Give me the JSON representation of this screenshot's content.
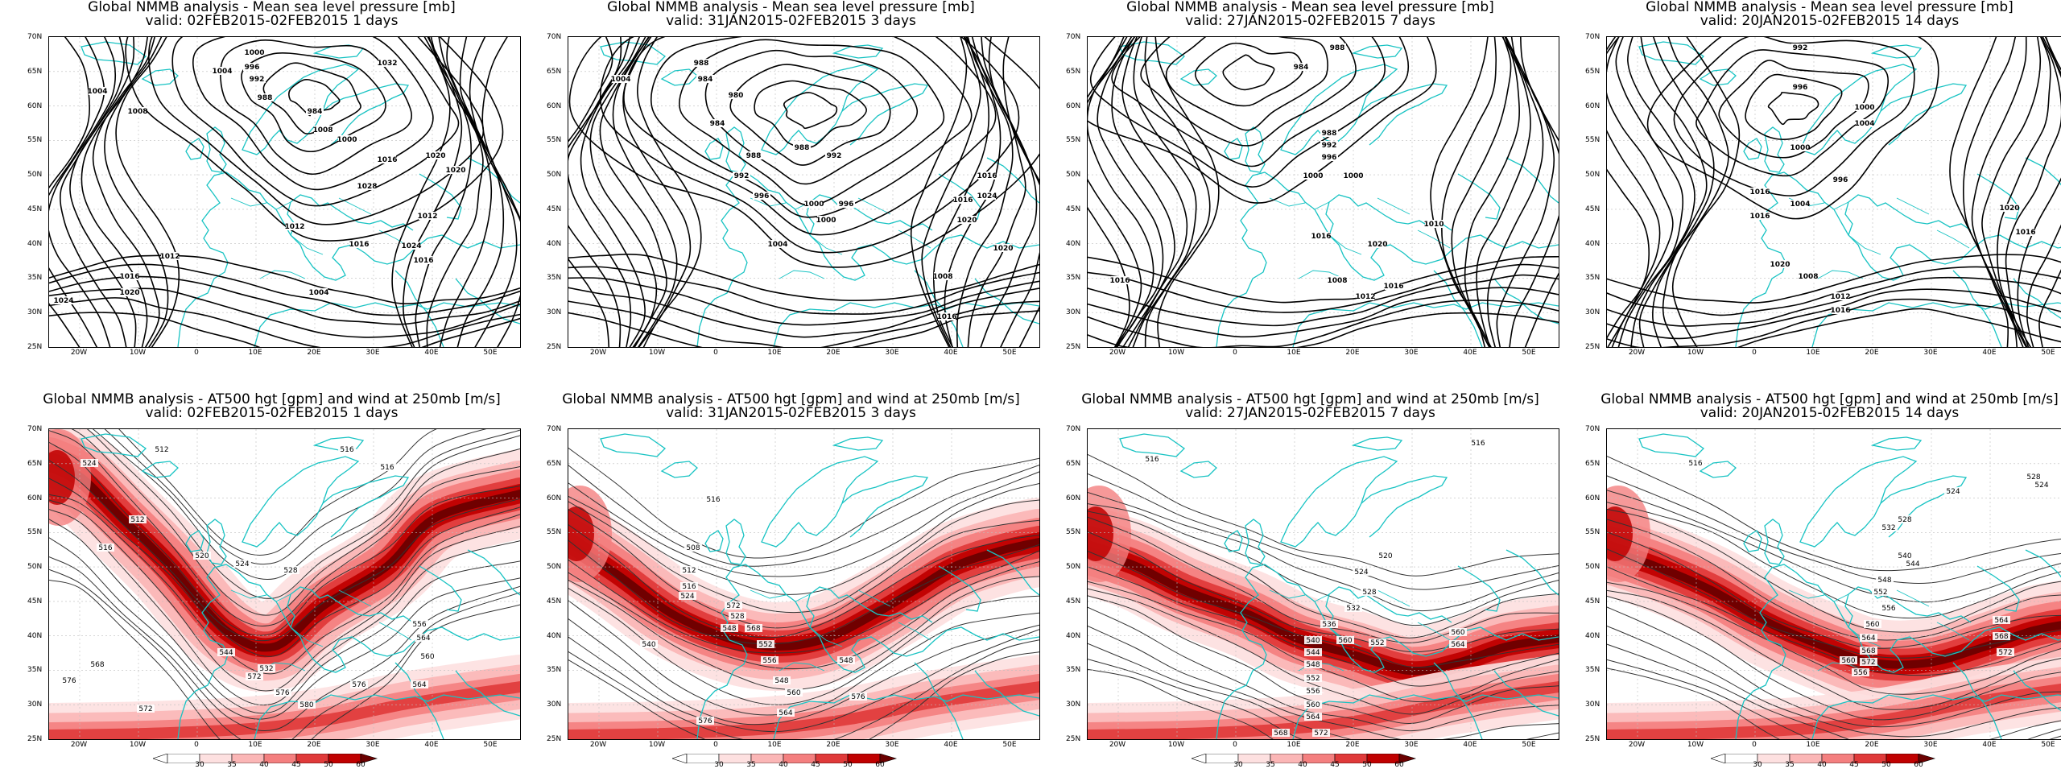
{
  "colors": {
    "coast": "#18c3c3",
    "isobar": "#000000",
    "height_contour": "#333333",
    "wind_shades": [
      "#ffffff",
      "#fde0e0",
      "#fbb6b6",
      "#f47f7f",
      "#e03a3a",
      "#c00000",
      "#6b0000"
    ]
  },
  "lat_labels": [
    "70N",
    "65N",
    "60N",
    "55N",
    "50N",
    "45N",
    "40N",
    "35N",
    "30N",
    "25N"
  ],
  "lon_labels": [
    "20W",
    "10W",
    "0",
    "10E",
    "20E",
    "30E",
    "40E",
    "50E"
  ],
  "colorbar_ticks": [
    "30",
    "35",
    "40",
    "45",
    "50",
    "60"
  ],
  "panels": [
    {
      "id": "mslp-1d",
      "title": "Global NMMB analysis - Mean sea level pressure [mb]",
      "subtitle": "valid: 02FEB2015-02FEB2015   1 days",
      "labels": [
        "1004",
        "1008",
        "1012",
        "1016",
        "1020",
        "1024",
        "1004",
        "1000",
        "996",
        "992",
        "988",
        "984",
        "1016",
        "1020",
        "1024",
        "1032",
        "1008",
        "1028",
        "1000",
        "1004",
        "1012",
        "1016",
        "1016",
        "1012",
        "1020"
      ]
    },
    {
      "id": "mslp-3d",
      "title": "Global NMMB analysis - Mean sea level pressure [mb]",
      "subtitle": "valid: 31JAN2015-02FEB2015   3 days",
      "labels": [
        "1004",
        "988",
        "984",
        "980",
        "984",
        "988",
        "992",
        "996",
        "992",
        "988",
        "1000",
        "1008",
        "1004",
        "1000",
        "996",
        "1020",
        "1016",
        "1016",
        "1016",
        "1024",
        "1020"
      ]
    },
    {
      "id": "mslp-7d",
      "title": "Global NMMB analysis - Mean sea level pressure [mb]",
      "subtitle": "valid: 27JAN2015-02FEB2015   7 days",
      "labels": [
        "988",
        "984",
        "988",
        "992",
        "996",
        "1000",
        "1000",
        "1010",
        "1016",
        "1016",
        "1012",
        "1008",
        "1020",
        "1016"
      ]
    },
    {
      "id": "mslp-14d",
      "title": "Global NMMB analysis - Mean sea level pressure [mb]",
      "subtitle": "valid: 20JAN2015-02FEB2015   14 days",
      "labels": [
        "992",
        "996",
        "1000",
        "1004",
        "1000",
        "996",
        "1004",
        "1016",
        "1016",
        "1020",
        "1008",
        "1012",
        "1016",
        "1020",
        "1016"
      ]
    },
    {
      "id": "z500-1d",
      "title": "Global NMMB analysis - AT500 hgt [gpm] and wind at 250mb [m/s]",
      "subtitle": "valid: 02FEB2015-02FEB2015   1 days",
      "labels": [
        "524",
        "512",
        "516",
        "516",
        "512",
        "516",
        "520",
        "524",
        "528",
        "544",
        "532",
        "556",
        "564",
        "560",
        "568",
        "572",
        "564",
        "576",
        "580",
        "576",
        "572",
        "576"
      ]
    },
    {
      "id": "z500-3d",
      "title": "Global NMMB analysis - AT500 hgt [gpm] and wind at 250mb [m/s]",
      "subtitle": "valid: 31JAN2015-02FEB2015   3 days",
      "labels": [
        "516",
        "508",
        "512",
        "516",
        "524",
        "528",
        "548",
        "552",
        "556",
        "548",
        "560",
        "564",
        "568",
        "572",
        "540",
        "576",
        "548",
        "576"
      ]
    },
    {
      "id": "z500-7d",
      "title": "Global NMMB analysis - AT500 hgt [gpm] and wind at 250mb [m/s]",
      "subtitle": "valid: 27JAN2015-02FEB2015   7 days",
      "labels": [
        "516",
        "516",
        "520",
        "524",
        "528",
        "532",
        "536",
        "540",
        "544",
        "548",
        "552",
        "556",
        "560",
        "564",
        "568",
        "572",
        "560",
        "552",
        "560",
        "564"
      ]
    },
    {
      "id": "z500-14d",
      "title": "Global NMMB analysis - AT500 hgt [gpm] and wind at 250mb [m/s]",
      "subtitle": "valid: 20JAN2015-02FEB2015   14 days",
      "labels": [
        "516",
        "524",
        "528",
        "524",
        "528",
        "532",
        "540",
        "544",
        "548",
        "552",
        "556",
        "560",
        "564",
        "568",
        "572",
        "556",
        "564",
        "568",
        "572",
        "560"
      ]
    }
  ]
}
